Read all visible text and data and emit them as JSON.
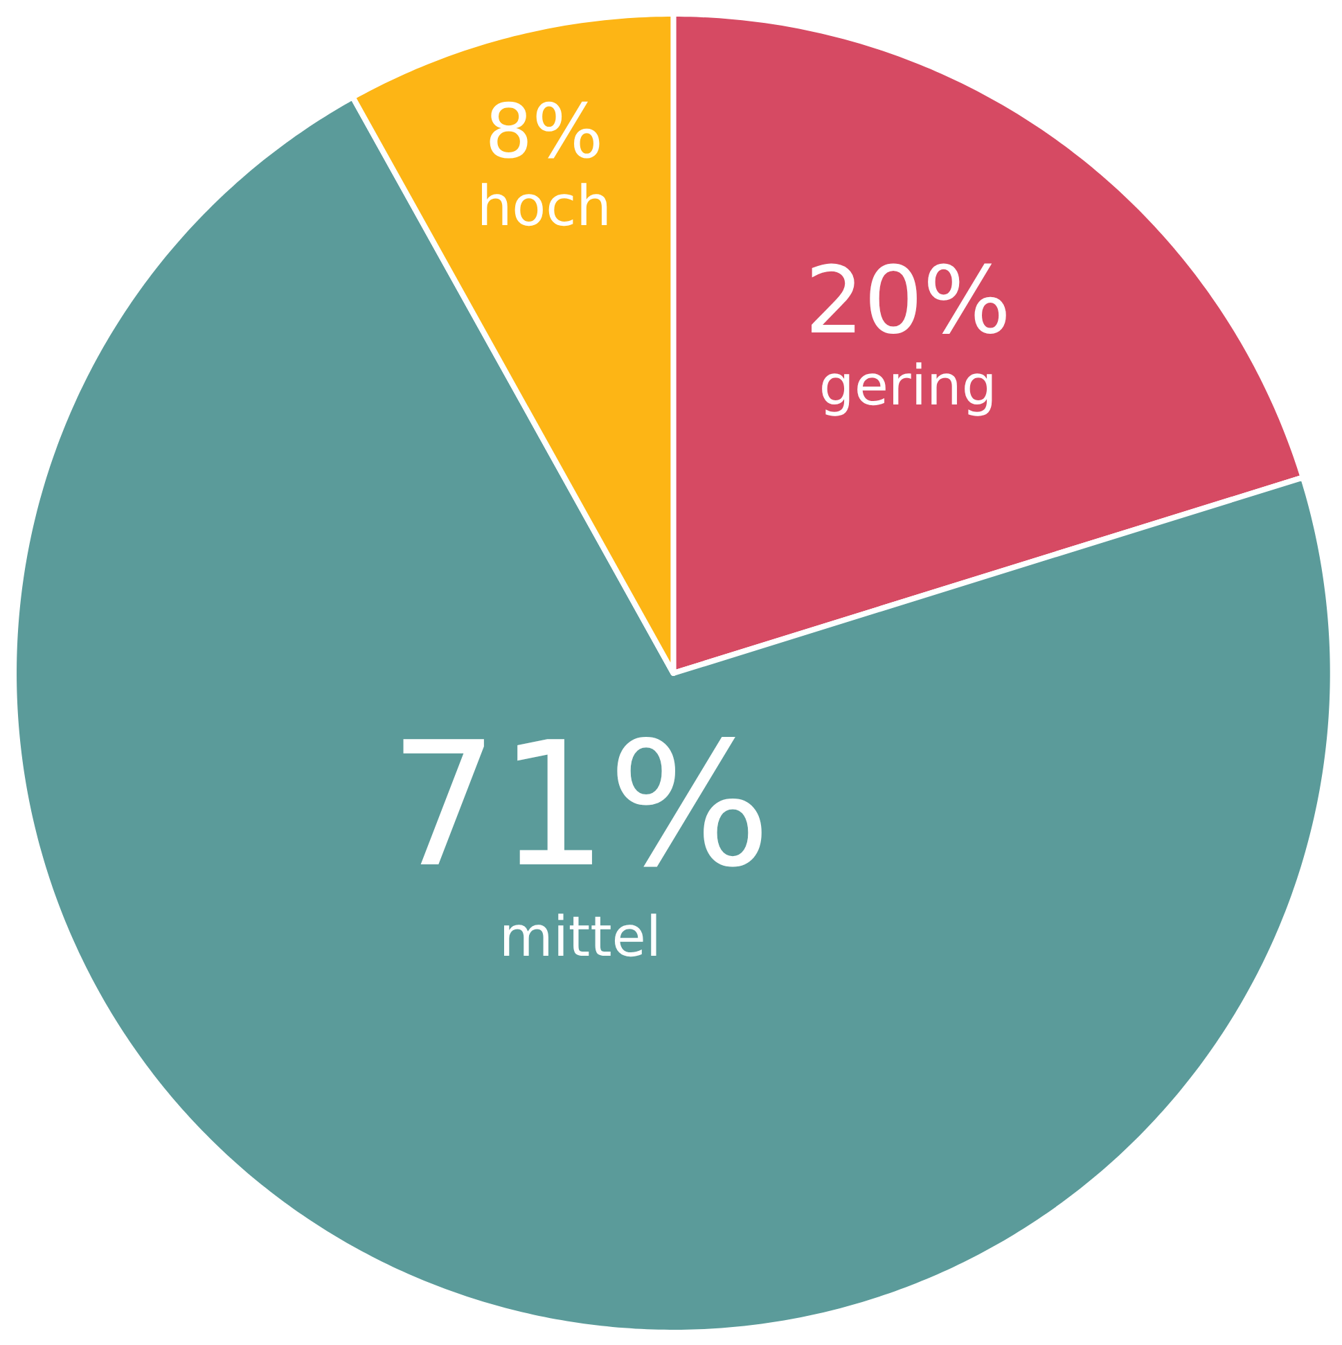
{
  "chart_data": {
    "type": "pie",
    "categories": [
      "gering",
      "mittel",
      "hoch"
    ],
    "values": [
      20,
      71,
      8
    ],
    "colors": [
      "#d64a63",
      "#5b9b9a",
      "#fdb515"
    ],
    "value_labels": [
      "20%",
      "71%",
      "8%"
    ]
  }
}
